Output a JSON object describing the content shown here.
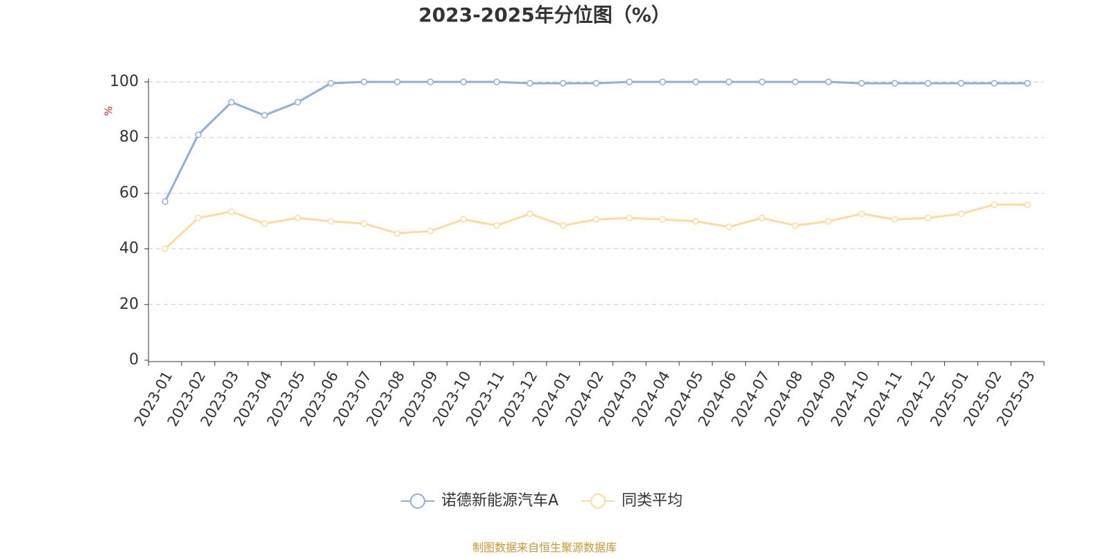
{
  "chart_data": {
    "type": "line",
    "title": "2023-2025年分位图（%）",
    "y_label": "%",
    "categories": [
      "2023-01",
      "2023-02",
      "2023-03",
      "2023-04",
      "2023-05",
      "2023-06",
      "2023-07",
      "2023-08",
      "2023-09",
      "2023-10",
      "2023-11",
      "2023-12",
      "2024-01",
      "2024-02",
      "2024-03",
      "2024-04",
      "2024-05",
      "2024-06",
      "2024-07",
      "2024-08",
      "2024-09",
      "2024-10",
      "2024-11",
      "2024-12",
      "2025-01",
      "2025-02",
      "2025-03"
    ],
    "series": [
      {
        "name": "诺德新能源汽车A",
        "color": "#8eaedb",
        "values": [
          57,
          81,
          92.7,
          88,
          92.7,
          99.5,
          100,
          100,
          100,
          100,
          100,
          99.5,
          99.5,
          99.5,
          100,
          100,
          100,
          100,
          100,
          100,
          100,
          99.5,
          99.5,
          99.5,
          99.5,
          99.5,
          99.5
        ]
      },
      {
        "name": "同类平均",
        "color": "#fddb9a",
        "values": [
          40,
          51.1,
          53.4,
          49.1,
          51.1,
          49.9,
          49.1,
          45.6,
          46.4,
          50.6,
          48.4,
          52.6,
          48.4,
          50.6,
          51.1,
          50.6,
          49.9,
          47.9,
          51.1,
          48.4,
          49.9,
          52.6,
          50.6,
          51.1,
          52.6,
          55.9,
          55.9
        ]
      }
    ],
    "ylim": [
      0,
      100
    ],
    "yticks": [
      0,
      20,
      40,
      60,
      80,
      100
    ],
    "grid": true,
    "legend": "bottom",
    "source": "制图数据来自恒生聚源数据库"
  }
}
